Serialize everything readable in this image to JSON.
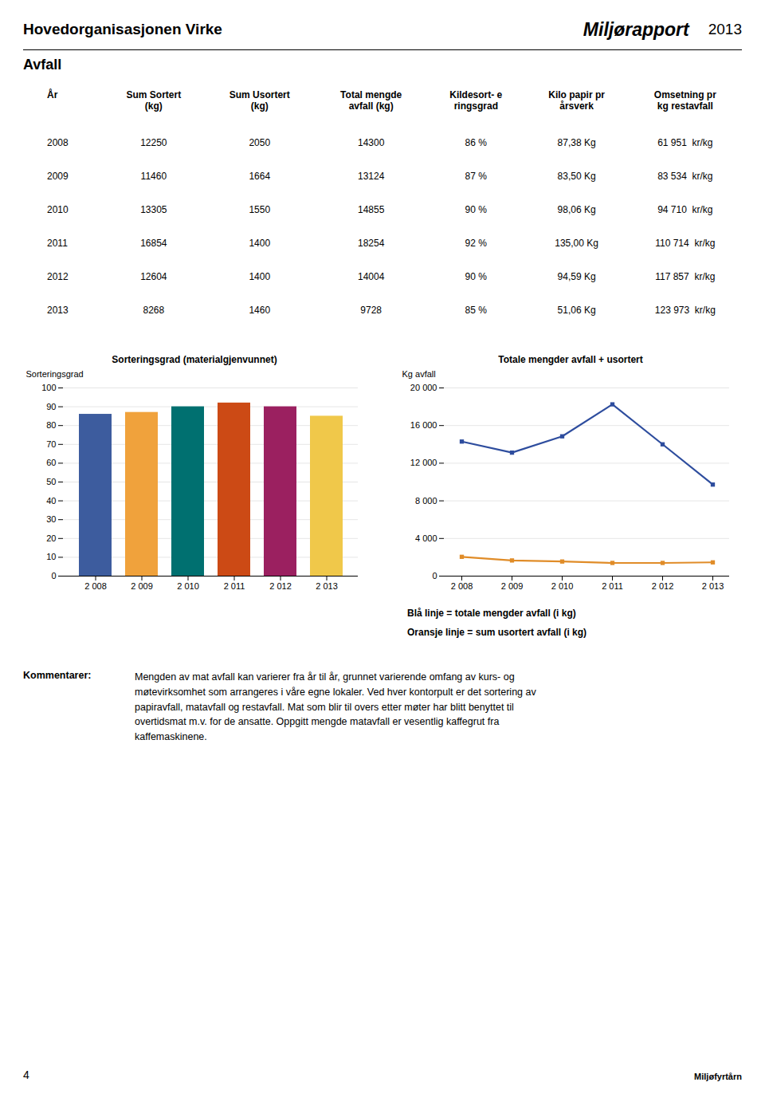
{
  "header": {
    "left": "Hovedorganisasjonen Virke",
    "right": "Miljørapport",
    "year": "2013"
  },
  "section_title": "Avfall",
  "table": {
    "columns": [
      "År",
      "Sum Sortert\n(kg)",
      "Sum Usortert\n(kg)",
      "Total mengde\navfall (kg)",
      "Kildesort- e\nringsgrad",
      "Kilo papir pr\nårsverk",
      "Omsetning pr\nkg restavfall"
    ],
    "rows": [
      [
        "2008",
        "12250",
        "2050",
        "14300",
        "86 %",
        "87,38 Kg",
        "61 951  kr/kg"
      ],
      [
        "2009",
        "11460",
        "1664",
        "13124",
        "87 %",
        "83,50 Kg",
        "83 534  kr/kg"
      ],
      [
        "2010",
        "13305",
        "1550",
        "14855",
        "90 %",
        "98,06 Kg",
        "94 710  kr/kg"
      ],
      [
        "2011",
        "16854",
        "1400",
        "18254",
        "92 %",
        "135,00 Kg",
        "110 714  kr/kg"
      ],
      [
        "2012",
        "12604",
        "1400",
        "14004",
        "90 %",
        "94,59 Kg",
        "117 857  kr/kg"
      ],
      [
        "2013",
        "8268",
        "1460",
        "9728",
        "85 %",
        "51,06 Kg",
        "123 973  kr/kg"
      ]
    ]
  },
  "chart_data": [
    {
      "type": "bar",
      "title": "Sorteringsgrad (materialgjenvunnet)",
      "ylabel": "Sorteringsgrad",
      "categories": [
        "2 008",
        "2 009",
        "2 010",
        "2 011",
        "2 012",
        "2 013"
      ],
      "values": [
        86,
        87,
        90,
        92,
        90,
        85
      ],
      "colors": [
        "#3d5c9e",
        "#f0a23c",
        "#007070",
        "#cc4a15",
        "#9b2060",
        "#f0c84a"
      ],
      "ylim": [
        0,
        100
      ],
      "yticks": [
        0,
        10,
        20,
        30,
        40,
        50,
        60,
        70,
        80,
        90,
        100
      ],
      "grid": true
    },
    {
      "type": "line",
      "title": "Totale mengder avfall + usortert",
      "ylabel": "Kg avfall",
      "categories": [
        "2 008",
        "2 009",
        "2 010",
        "2 011",
        "2 012",
        "2 013"
      ],
      "series": [
        {
          "name": "Blå linje = totale mengder avfall (i kg)",
          "color": "#2e4d9e",
          "marker": "square",
          "values": [
            14300,
            13124,
            14855,
            18254,
            14004,
            9728
          ]
        },
        {
          "name": "Oransje linje = sum usortert avfall (i kg)",
          "color": "#e08c28",
          "marker": "square",
          "values": [
            2050,
            1664,
            1550,
            1400,
            1400,
            1460
          ]
        }
      ],
      "ylim": [
        0,
        20000
      ],
      "yticks": [
        0,
        {
          "value": 4000,
          "label": "4 000"
        },
        {
          "value": 8000,
          "label": "8 000"
        },
        {
          "value": 12000,
          "label": "12 000"
        },
        {
          "value": 16000,
          "label": "16 000"
        },
        {
          "value": 20000,
          "label": "20 000"
        }
      ],
      "grid": true,
      "legend": "bottom"
    }
  ],
  "annotations": {
    "comments_label": "Kommentarer:",
    "comments_text": "Mengden av mat avfall kan varierer fra år til år, grunnet varierende omfang av kurs- og\nmøtevirksomhet som arrangeres i våre egne lokaler. Ved hver kontorpult er det sortering av\npapiravfall, matavfall og restavfall.   Mat som blir til overs etter møter har blitt benyttet til\novertidsmat m.v. for de ansatte. Oppgitt mengde matavfall er vesentlig kaffegrut fra\nkaffemaskinene.",
    "page_number": "4",
    "logo_text": "Miljøfyrtårn"
  }
}
